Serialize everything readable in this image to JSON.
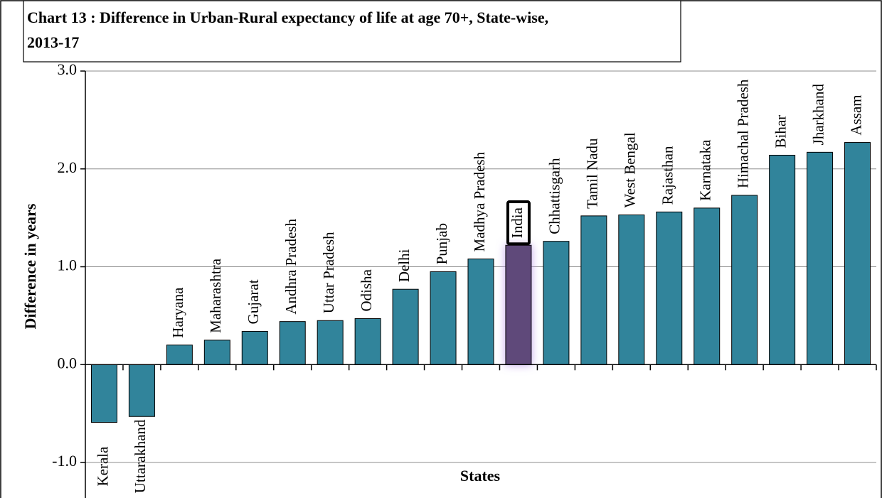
{
  "chart_data": {
    "type": "bar",
    "title": "Chart 13 : Difference in Urban-Rural expectancy of life at age 70+, State-wise, 2013-17",
    "x_label": "States",
    "y_label": "Difference in years",
    "categories": [
      "Kerala",
      "Uttarakhand",
      "Haryana",
      "Maharashtra",
      "Gujarat",
      "Andhra Pradesh",
      "Uttar Pradesh",
      "Odisha",
      "Delhi",
      "Punjab",
      "Madhya Pradesh",
      "India",
      "Chhattisgarh",
      "Tamil Nadu",
      "West Bengal",
      "Rajasthan",
      "Karnataka",
      "Himachal Pradesh",
      "Bihar",
      "Jharkhand",
      "Assam"
    ],
    "values": [
      -0.59,
      -0.53,
      0.2,
      0.25,
      0.34,
      0.44,
      0.45,
      0.47,
      0.77,
      0.95,
      1.08,
      1.22,
      1.26,
      1.52,
      1.53,
      1.56,
      1.6,
      1.73,
      2.14,
      2.17,
      2.27
    ],
    "colors": [
      "#31849b",
      "#31849b",
      "#31849b",
      "#31849b",
      "#31849b",
      "#31849b",
      "#31849b",
      "#31849b",
      "#31849b",
      "#31849b",
      "#31849b",
      "#5f497a",
      "#31849b",
      "#31849b",
      "#31849b",
      "#31849b",
      "#31849b",
      "#31849b",
      "#31849b",
      "#31849b",
      "#31849b"
    ],
    "ylim": [
      -1,
      3
    ],
    "yticks": [
      {
        "value": -1,
        "label": "-1.0"
      },
      {
        "value": 0,
        "label": "0.0"
      },
      {
        "value": 1,
        "label": "1.0"
      },
      {
        "value": 2,
        "label": "2.0"
      },
      {
        "value": 3,
        "label": "3.0"
      }
    ],
    "grid": true
  }
}
